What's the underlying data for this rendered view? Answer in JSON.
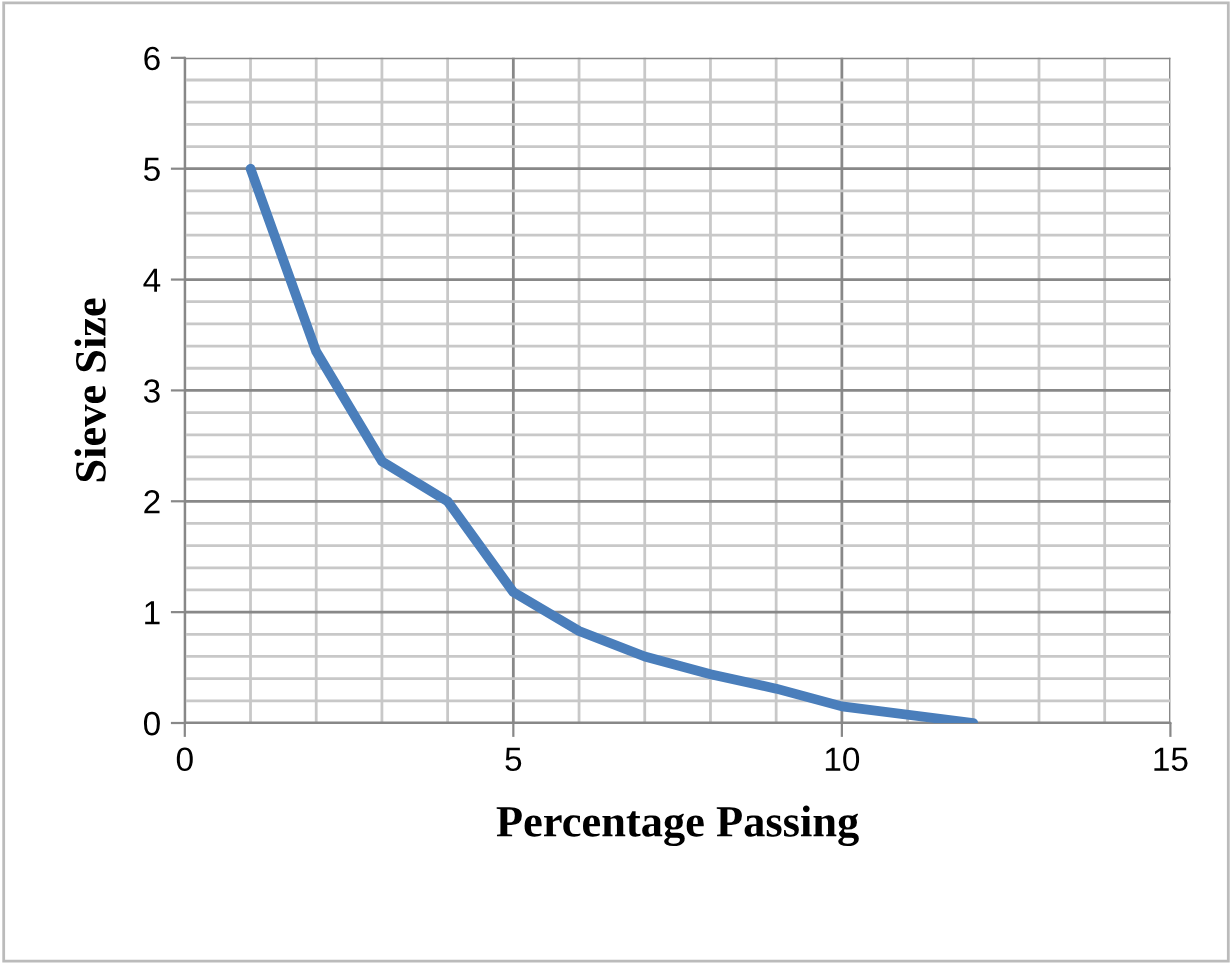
{
  "chart_data": {
    "type": "line",
    "xlabel": "Percentage Passing",
    "ylabel": "Sieve Size",
    "x": [
      1,
      2,
      3,
      4,
      5,
      6,
      7,
      8,
      9,
      10,
      12
    ],
    "series": [
      {
        "color": "#4a7ebb",
        "values": [
          5,
          3.35,
          2.36,
          2.0,
          1.18,
          0.83,
          0.6,
          0.44,
          0.31,
          0.15,
          0
        ]
      }
    ],
    "xlim": [
      0,
      15
    ],
    "ylim": [
      0,
      6
    ],
    "xticks": [
      0,
      5,
      10,
      15
    ],
    "yticks": [
      0,
      1,
      2,
      3,
      4,
      5,
      6
    ],
    "grid": true,
    "marker": "none",
    "line_style": "solid"
  }
}
